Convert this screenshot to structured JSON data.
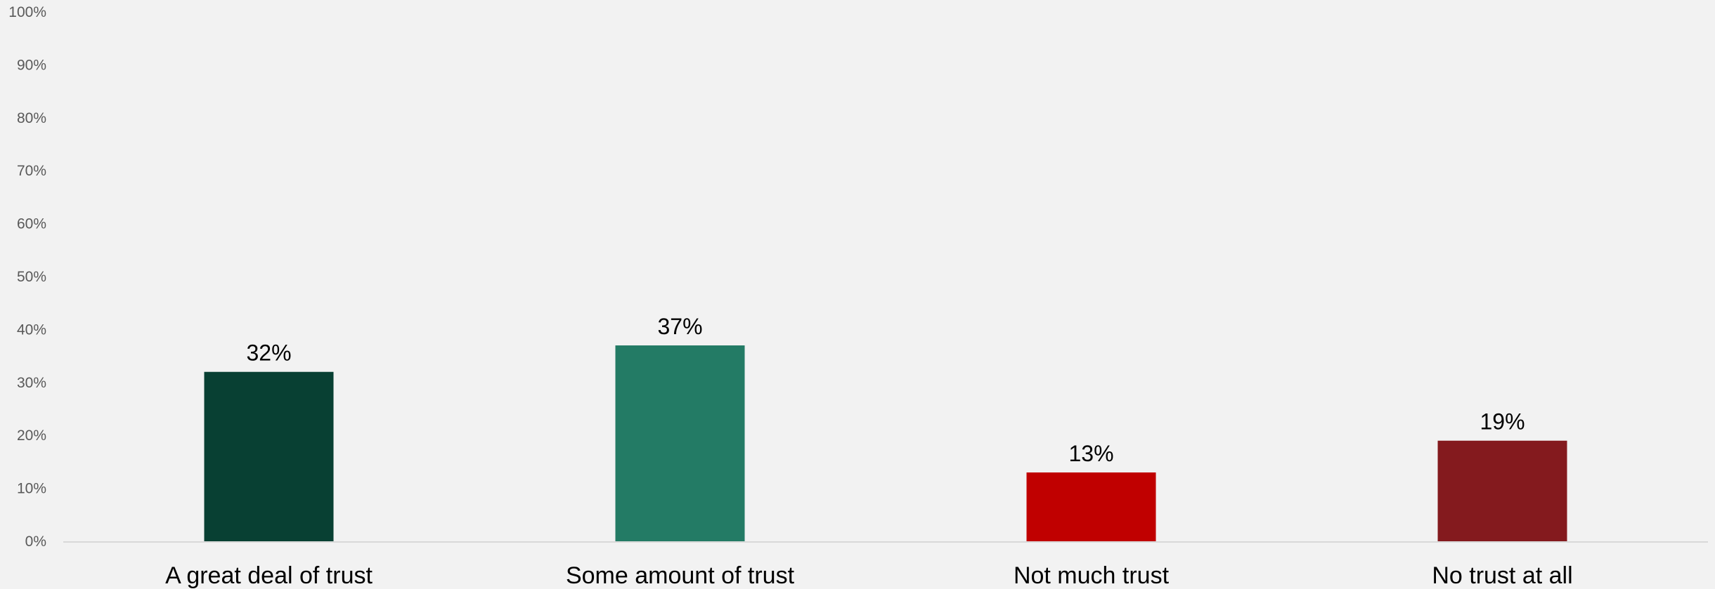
{
  "chart_data": {
    "type": "bar",
    "categories": [
      "A great deal of trust",
      "Some amount of trust",
      "Not much trust",
      "No trust at all"
    ],
    "values": [
      32,
      37,
      13,
      19
    ],
    "data_labels": [
      "32%",
      "37%",
      "13%",
      "19%"
    ],
    "bar_colors": [
      "#084033",
      "#237b65",
      "#c00000",
      "#841a1e"
    ],
    "ylim": [
      0,
      100
    ],
    "yticks": [
      0,
      10,
      20,
      30,
      40,
      50,
      60,
      70,
      80,
      90,
      100
    ],
    "ytick_labels": [
      "0%",
      "10%",
      "20%",
      "30%",
      "40%",
      "50%",
      "60%",
      "70%",
      "80%",
      "90%",
      "100%"
    ],
    "grid": false,
    "legend": "none",
    "title": "",
    "xlabel": "",
    "ylabel": ""
  }
}
